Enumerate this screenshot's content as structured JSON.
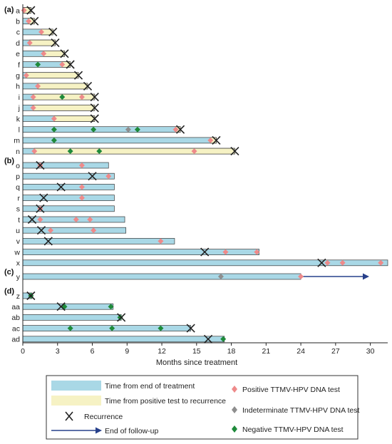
{
  "chart_data": {
    "type": "timeline",
    "xlabel": "Months since treatment",
    "xlim": [
      0,
      31.5
    ],
    "xticks": [
      0,
      3,
      6,
      9,
      12,
      15,
      18,
      21,
      24,
      27,
      30
    ],
    "colors": {
      "treatment_bar": "#a9d8e6",
      "recurrence_bar": "#f6f2c4",
      "positive": "#ee8a8a",
      "indeterminate": "#8e8e8e",
      "negative": "#1e8a3a",
      "recurrence_mark": "#222222",
      "follow_up_arrow": "#27408b"
    },
    "legend": {
      "treatment_bar": "Time from end of treatment",
      "recurrence_bar": "Time from positive test to recurrence",
      "recurrence": "Recurrence",
      "follow_up": "End of follow-up",
      "positive": "Positive TTMV-HPV DNA test",
      "indeterminate": "Indeterminate TTMV-HPV DNA test",
      "negative": "Negative TTMV-HPV DNA test"
    },
    "groups": [
      {
        "label": "(a)",
        "rows": [
          {
            "id": "a",
            "end": 0.7,
            "yellow_start": 0.1,
            "recurrence": 0.7,
            "positive": [
              0.1
            ],
            "indeterminate": [],
            "negative": []
          },
          {
            "id": "b",
            "end": 1.0,
            "yellow_start": 0.5,
            "recurrence": 1.0,
            "positive": [
              0.5
            ],
            "indeterminate": [],
            "negative": []
          },
          {
            "id": "c",
            "end": 2.6,
            "yellow_start": 1.6,
            "recurrence": 2.6,
            "positive": [
              1.6
            ],
            "indeterminate": [],
            "negative": []
          },
          {
            "id": "d",
            "end": 2.8,
            "yellow_start": 0.6,
            "recurrence": 2.8,
            "positive": [
              0.6
            ],
            "indeterminate": [],
            "negative": []
          },
          {
            "id": "e",
            "end": 3.6,
            "yellow_start": 1.8,
            "recurrence": 3.6,
            "positive": [
              1.8
            ],
            "indeterminate": [],
            "negative": []
          },
          {
            "id": "f",
            "end": 4.1,
            "yellow_start": 3.4,
            "recurrence": 4.1,
            "positive": [
              3.4
            ],
            "indeterminate": [],
            "negative": [
              1.3
            ]
          },
          {
            "id": "g",
            "end": 4.8,
            "yellow_start": 0.3,
            "recurrence": 4.8,
            "positive": [
              0.3
            ],
            "indeterminate": [],
            "negative": []
          },
          {
            "id": "h",
            "end": 5.6,
            "yellow_start": 1.3,
            "recurrence": 5.6,
            "positive": [
              1.3
            ],
            "indeterminate": [],
            "negative": []
          },
          {
            "id": "i",
            "end": 6.2,
            "yellow_start": 0.9,
            "recurrence": 6.2,
            "positive": [
              0.9,
              5.1
            ],
            "indeterminate": [],
            "negative": [
              3.4
            ]
          },
          {
            "id": "j",
            "end": 6.2,
            "yellow_start": 0.9,
            "recurrence": 6.2,
            "positive": [
              0.9
            ],
            "indeterminate": [],
            "negative": []
          },
          {
            "id": "k",
            "end": 6.2,
            "yellow_start": 2.7,
            "recurrence": 6.2,
            "positive": [
              2.7
            ],
            "indeterminate": [],
            "negative": []
          },
          {
            "id": "l",
            "end": 13.6,
            "yellow_start": 13.2,
            "recurrence": 13.6,
            "positive": [
              13.2
            ],
            "indeterminate": [
              9.1
            ],
            "negative": [
              2.7,
              6.1,
              9.9
            ]
          },
          {
            "id": "m",
            "end": 16.7,
            "yellow_start": 16.2,
            "recurrence": 16.7,
            "positive": [
              16.2
            ],
            "indeterminate": [],
            "negative": [
              2.7
            ]
          },
          {
            "id": "n",
            "end": 18.3,
            "yellow_start": 1.0,
            "recurrence": 18.3,
            "positive": [
              1.0,
              14.8
            ],
            "indeterminate": [],
            "negative": [
              4.1,
              6.6
            ]
          }
        ]
      },
      {
        "label": "(b)",
        "rows": [
          {
            "id": "o",
            "end": 7.4,
            "yellow_start": null,
            "recurrence": 1.5,
            "positive": [
              1.5,
              5.1
            ],
            "indeterminate": [],
            "negative": []
          },
          {
            "id": "p",
            "end": 7.9,
            "yellow_start": null,
            "recurrence": 6.0,
            "positive": [
              7.4
            ],
            "indeterminate": [],
            "negative": []
          },
          {
            "id": "q",
            "end": 7.9,
            "yellow_start": null,
            "recurrence": 3.3,
            "positive": [
              5.1
            ],
            "indeterminate": [],
            "negative": []
          },
          {
            "id": "r",
            "end": 7.9,
            "yellow_start": null,
            "recurrence": 1.8,
            "positive": [
              5.1
            ],
            "indeterminate": [],
            "negative": []
          },
          {
            "id": "s",
            "end": 7.9,
            "yellow_start": null,
            "recurrence": 1.5,
            "positive": [
              1.5
            ],
            "indeterminate": [],
            "negative": []
          },
          {
            "id": "t",
            "end": 8.8,
            "yellow_start": null,
            "recurrence": 0.8,
            "positive": [
              1.5,
              4.6,
              5.8
            ],
            "indeterminate": [],
            "negative": []
          },
          {
            "id": "u",
            "end": 8.9,
            "yellow_start": null,
            "recurrence": 1.6,
            "positive": [
              2.4,
              6.1
            ],
            "indeterminate": [],
            "negative": []
          },
          {
            "id": "v",
            "end": 13.1,
            "yellow_start": null,
            "recurrence": 2.2,
            "positive": [
              11.9
            ],
            "indeterminate": [],
            "negative": []
          },
          {
            "id": "w",
            "end": 20.4,
            "yellow_start": null,
            "recurrence": 15.7,
            "positive": [
              17.5,
              20.2
            ],
            "indeterminate": [],
            "negative": []
          },
          {
            "id": "x",
            "end": 31.5,
            "yellow_start": null,
            "recurrence": 25.8,
            "positive": [
              26.3,
              27.6,
              30.9
            ],
            "indeterminate": [],
            "negative": []
          }
        ]
      },
      {
        "label": "(c)",
        "rows": [
          {
            "id": "y",
            "end": 24.0,
            "yellow_start": null,
            "recurrence": null,
            "follow_up_end": 29.9,
            "positive": [
              24.0
            ],
            "indeterminate": [
              17.1
            ],
            "negative": []
          }
        ]
      },
      {
        "label": "(d)",
        "rows": [
          {
            "id": "z",
            "end": 0.8,
            "yellow_start": null,
            "recurrence": 0.7,
            "positive": [],
            "indeterminate": [],
            "negative": [
              0.7
            ]
          },
          {
            "id": "aa",
            "end": 7.8,
            "yellow_start": null,
            "recurrence": 3.3,
            "positive": [],
            "indeterminate": [],
            "negative": [
              3.6,
              7.6
            ]
          },
          {
            "id": "ab",
            "end": 8.5,
            "yellow_start": null,
            "recurrence": 8.5,
            "positive": [],
            "indeterminate": [],
            "negative": [
              8.4
            ]
          },
          {
            "id": "ac",
            "end": 14.5,
            "yellow_start": null,
            "recurrence": 14.5,
            "positive": [],
            "indeterminate": [],
            "negative": [
              4.1,
              7.7,
              11.9
            ]
          },
          {
            "id": "ad",
            "end": 17.4,
            "yellow_start": null,
            "recurrence": 16.0,
            "positive": [],
            "indeterminate": [],
            "negative": [
              17.3
            ]
          }
        ]
      }
    ]
  }
}
